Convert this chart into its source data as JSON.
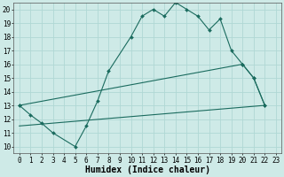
{
  "xlabel": "Humidex (Indice chaleur)",
  "xlim": [
    -0.5,
    23.5
  ],
  "ylim": [
    9.5,
    20.5
  ],
  "yticks": [
    10,
    11,
    12,
    13,
    14,
    15,
    16,
    17,
    18,
    19,
    20
  ],
  "xticks": [
    0,
    1,
    2,
    3,
    4,
    5,
    6,
    7,
    8,
    9,
    10,
    11,
    12,
    13,
    14,
    15,
    16,
    17,
    18,
    19,
    20,
    21,
    22,
    23
  ],
  "bg_color": "#ceeae7",
  "grid_color": "#b0d8d4",
  "line_color": "#1a6b5e",
  "line1_x": [
    0,
    1,
    2,
    3,
    5,
    6,
    7,
    8,
    10,
    11,
    12,
    13,
    14,
    15,
    16,
    17,
    18,
    19,
    20,
    21,
    22
  ],
  "line1_y": [
    13,
    12.3,
    11.7,
    11,
    10,
    11.5,
    13.3,
    15.5,
    18,
    19.5,
    20,
    19.5,
    20.5,
    20,
    19.5,
    18.5,
    19.3,
    17,
    16,
    15,
    13
  ],
  "line2_x": [
    0,
    20,
    21,
    22
  ],
  "line2_y": [
    13,
    16,
    15,
    13
  ],
  "line3_x": [
    0,
    22
  ],
  "line3_y": [
    11.5,
    13
  ],
  "fontsize_xlabel": 7,
  "tick_fontsize": 5.5
}
